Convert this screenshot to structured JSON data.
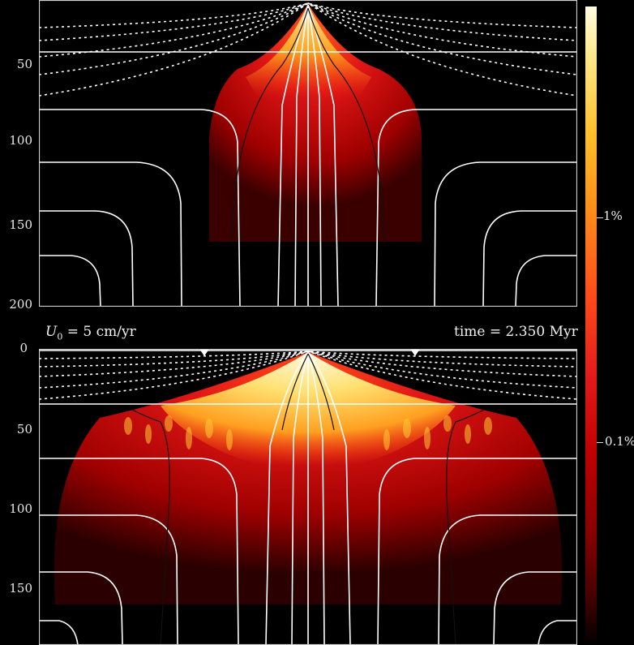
{
  "top_panel": {
    "y_ticks": [
      "50",
      "100",
      "150",
      "200"
    ]
  },
  "bottom_panel": {
    "y_ticks": [
      "0",
      "50",
      "100",
      "150"
    ],
    "velocity_label_var": "U",
    "velocity_label_sub": "0",
    "velocity_label_rest": " = 5 cm/yr",
    "time_label": "time = 2.350 Myr"
  },
  "colorbar": {
    "labels": [
      "1%",
      "0.1%"
    ],
    "colors": [
      "#000000",
      "#8a0000",
      "#e31a1c",
      "#ff8c1a",
      "#ffe88a",
      "#fffbe0"
    ]
  }
}
